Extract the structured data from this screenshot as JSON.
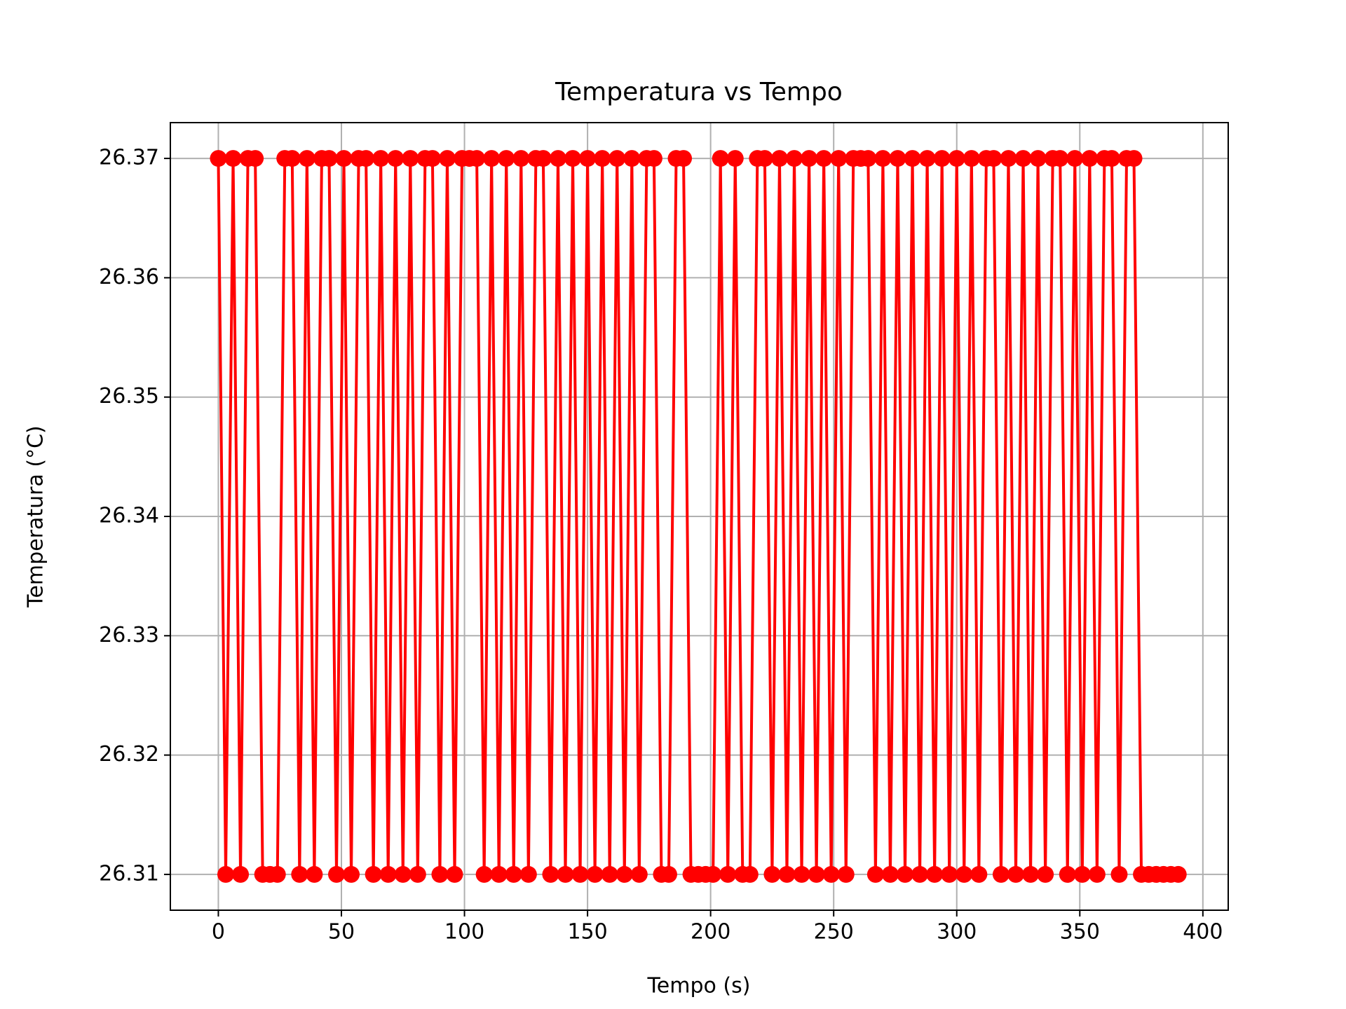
{
  "chart_data": {
    "type": "line",
    "title": "Temperatura vs Tempo",
    "x_label": "Tempo (s)",
    "y_label": "Temperatura (°C)",
    "x": [
      0,
      3,
      6,
      9,
      12,
      15,
      18,
      21,
      24,
      27,
      30,
      33,
      36,
      39,
      42,
      45,
      48,
      51,
      54,
      57,
      60,
      63,
      66,
      69,
      72,
      75,
      78,
      81,
      84,
      87,
      90,
      93,
      96,
      99,
      102,
      105,
      108,
      111,
      114,
      117,
      120,
      123,
      126,
      129,
      132,
      135,
      138,
      141,
      144,
      147,
      150,
      153,
      156,
      159,
      162,
      165,
      168,
      171,
      174,
      177,
      180,
      183,
      186,
      189,
      192,
      195,
      198,
      201,
      204,
      207,
      210,
      213,
      216,
      219,
      222,
      225,
      228,
      231,
      234,
      237,
      240,
      243,
      246,
      249,
      252,
      255,
      258,
      261,
      264,
      267,
      270,
      273,
      276,
      279,
      282,
      285,
      288,
      291,
      294,
      297,
      300,
      303,
      306,
      309,
      312,
      315,
      318,
      321,
      324,
      327,
      330,
      333,
      336,
      339,
      342,
      345,
      348,
      351,
      354,
      357,
      360,
      363,
      366,
      369,
      372,
      375,
      378,
      381,
      384,
      387,
      390
    ],
    "values": [
      26.37,
      26.31,
      26.37,
      26.31,
      26.37,
      26.37,
      26.31,
      26.31,
      26.31,
      26.37,
      26.37,
      26.31,
      26.37,
      26.31,
      26.37,
      26.37,
      26.31,
      26.37,
      26.31,
      26.37,
      26.37,
      26.31,
      26.37,
      26.31,
      26.37,
      26.31,
      26.37,
      26.31,
      26.37,
      26.37,
      26.31,
      26.37,
      26.31,
      26.37,
      26.37,
      26.37,
      26.31,
      26.37,
      26.31,
      26.37,
      26.31,
      26.37,
      26.31,
      26.37,
      26.37,
      26.31,
      26.37,
      26.31,
      26.37,
      26.31,
      26.37,
      26.31,
      26.37,
      26.31,
      26.37,
      26.31,
      26.37,
      26.31,
      26.37,
      26.37,
      26.31,
      26.31,
      26.37,
      26.37,
      26.31,
      26.31,
      26.31,
      26.31,
      26.37,
      26.31,
      26.37,
      26.31,
      26.31,
      26.37,
      26.37,
      26.31,
      26.37,
      26.31,
      26.37,
      26.31,
      26.37,
      26.31,
      26.37,
      26.31,
      26.37,
      26.31,
      26.37,
      26.37,
      26.37,
      26.31,
      26.37,
      26.31,
      26.37,
      26.31,
      26.37,
      26.31,
      26.37,
      26.31,
      26.37,
      26.31,
      26.37,
      26.31,
      26.37,
      26.31,
      26.37,
      26.37,
      26.31,
      26.37,
      26.31,
      26.37,
      26.31,
      26.37,
      26.31,
      26.37,
      26.37,
      26.31,
      26.37,
      26.31,
      26.37,
      26.31,
      26.37,
      26.37,
      26.31,
      26.37,
      26.37,
      26.31,
      26.31,
      26.31,
      26.31,
      26.31,
      26.31
    ],
    "color": "#ff0000",
    "xlim": [
      -19.5,
      410.3
    ],
    "ylim": [
      26.307,
      26.373
    ],
    "xticks": [
      0,
      50,
      100,
      150,
      200,
      250,
      300,
      350,
      400
    ],
    "yticks": [
      26.31,
      26.32,
      26.33,
      26.34,
      26.35,
      26.36,
      26.37
    ],
    "grid": true
  }
}
